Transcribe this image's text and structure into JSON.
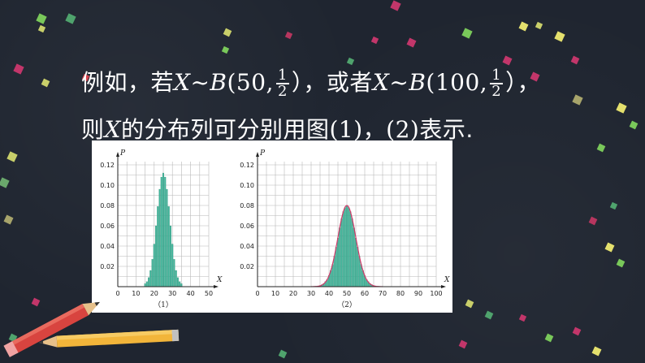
{
  "text": {
    "line1_prefix": "例如，若",
    "x_var": "X",
    "tilde": "~",
    "b": "B",
    "open_50": "(50,",
    "frac_num": "1",
    "frac_den": "2",
    "close_mid": "），或者",
    "open_100": "(100,",
    "close_end": "），",
    "line2_prefix": "则",
    "line2_rest": "的分布列可分别用图",
    "fig1": "(1)",
    "comma2": "，",
    "fig2": "(2)",
    "line2_end": "表示."
  },
  "colors": {
    "background": "#1f2530",
    "bar": "#3fb59a",
    "curve": "#d23a6a",
    "grid": "#b8b8b8",
    "text": "#ffffff"
  },
  "chart_data": [
    {
      "type": "bar",
      "caption": "（1）",
      "ylabel": "P",
      "xlabel": "X",
      "xlim": [
        0,
        50
      ],
      "ylim": [
        0,
        0.12
      ],
      "xticks": [
        0,
        10,
        20,
        30,
        40,
        50
      ],
      "yticks": [
        0.02,
        0.04,
        0.06,
        0.08,
        0.1,
        0.12
      ],
      "ytick_labels": [
        "0.02",
        "0.04",
        "0.06",
        "0.08",
        "0.10",
        "0.12"
      ],
      "n": 50,
      "x": [
        15,
        16,
        17,
        18,
        19,
        20,
        21,
        22,
        23,
        24,
        25,
        26,
        27,
        28,
        29,
        30,
        31,
        32,
        33,
        34,
        35
      ],
      "values": [
        0.003,
        0.005,
        0.009,
        0.016,
        0.027,
        0.042,
        0.06,
        0.079,
        0.096,
        0.108,
        0.112,
        0.108,
        0.096,
        0.079,
        0.06,
        0.042,
        0.027,
        0.016,
        0.009,
        0.005,
        0.003
      ]
    },
    {
      "type": "bar",
      "caption": "（2）",
      "ylabel": "P",
      "xlabel": "X",
      "xlim": [
        0,
        100
      ],
      "ylim": [
        0,
        0.12
      ],
      "xticks": [
        0,
        10,
        20,
        30,
        40,
        50,
        60,
        70,
        80,
        90,
        100
      ],
      "yticks": [
        0.02,
        0.04,
        0.06,
        0.08,
        0.1,
        0.12
      ],
      "ytick_labels": [
        "0.02",
        "0.04",
        "0.06",
        "0.08",
        "0.10",
        "0.12"
      ],
      "n": 100,
      "x": [
        35,
        36,
        37,
        38,
        39,
        40,
        41,
        42,
        43,
        44,
        45,
        46,
        47,
        48,
        49,
        50,
        51,
        52,
        53,
        54,
        55,
        56,
        57,
        58,
        59,
        60,
        61,
        62,
        63,
        64,
        65
      ],
      "values": [
        0.001,
        0.002,
        0.003,
        0.005,
        0.007,
        0.011,
        0.016,
        0.022,
        0.03,
        0.039,
        0.048,
        0.058,
        0.067,
        0.074,
        0.078,
        0.08,
        0.078,
        0.074,
        0.067,
        0.058,
        0.048,
        0.039,
        0.03,
        0.022,
        0.016,
        0.011,
        0.007,
        0.005,
        0.003,
        0.002,
        0.001
      ],
      "curve": true
    }
  ]
}
